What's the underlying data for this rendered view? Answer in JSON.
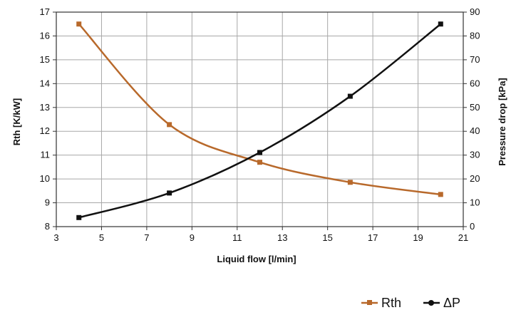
{
  "chart_data": {
    "type": "line",
    "title": "",
    "xlabel": "Liquid flow [l/min]",
    "ylabel_left": "Rth [K/kW]",
    "ylabel_right": "Pressure drop [kPa]",
    "xlim": [
      3,
      21
    ],
    "ylim_left": [
      8,
      17
    ],
    "ylim_right": [
      0,
      90
    ],
    "x_ticks": [
      3,
      5,
      7,
      9,
      11,
      13,
      15,
      17,
      19,
      21
    ],
    "y_left_ticks": [
      8,
      9,
      10,
      11,
      12,
      13,
      14,
      15,
      16,
      17
    ],
    "y_right_ticks": [
      0,
      10,
      20,
      30,
      40,
      50,
      60,
      70,
      80,
      90
    ],
    "x_tick_labels": [
      "3",
      "5",
      "7",
      "9",
      "11",
      "13",
      "15",
      "17",
      "19",
      "21"
    ],
    "y_left_tick_labels": [
      "8",
      "9",
      "10",
      "11",
      "12",
      "13",
      "14",
      "15",
      "16",
      "17"
    ],
    "y_right_tick_labels": [
      "0",
      "10",
      "20",
      "30",
      "40",
      "50",
      "60",
      "70",
      "80",
      "90"
    ],
    "grid": true,
    "legend_position": "bottom-right",
    "series": [
      {
        "name": "Rth",
        "axis": "left",
        "color": "#b8692b",
        "marker": "square",
        "x": [
          4,
          8,
          12,
          16,
          20
        ],
        "values": [
          16.5,
          12.28,
          10.7,
          9.86,
          9.35
        ]
      },
      {
        "name": "ΔP",
        "axis": "right",
        "color": "#111111",
        "marker": "square",
        "x": [
          4,
          8,
          12,
          16,
          20
        ],
        "values": [
          3.8,
          14.1,
          31.1,
          54.7,
          85
        ]
      }
    ]
  }
}
